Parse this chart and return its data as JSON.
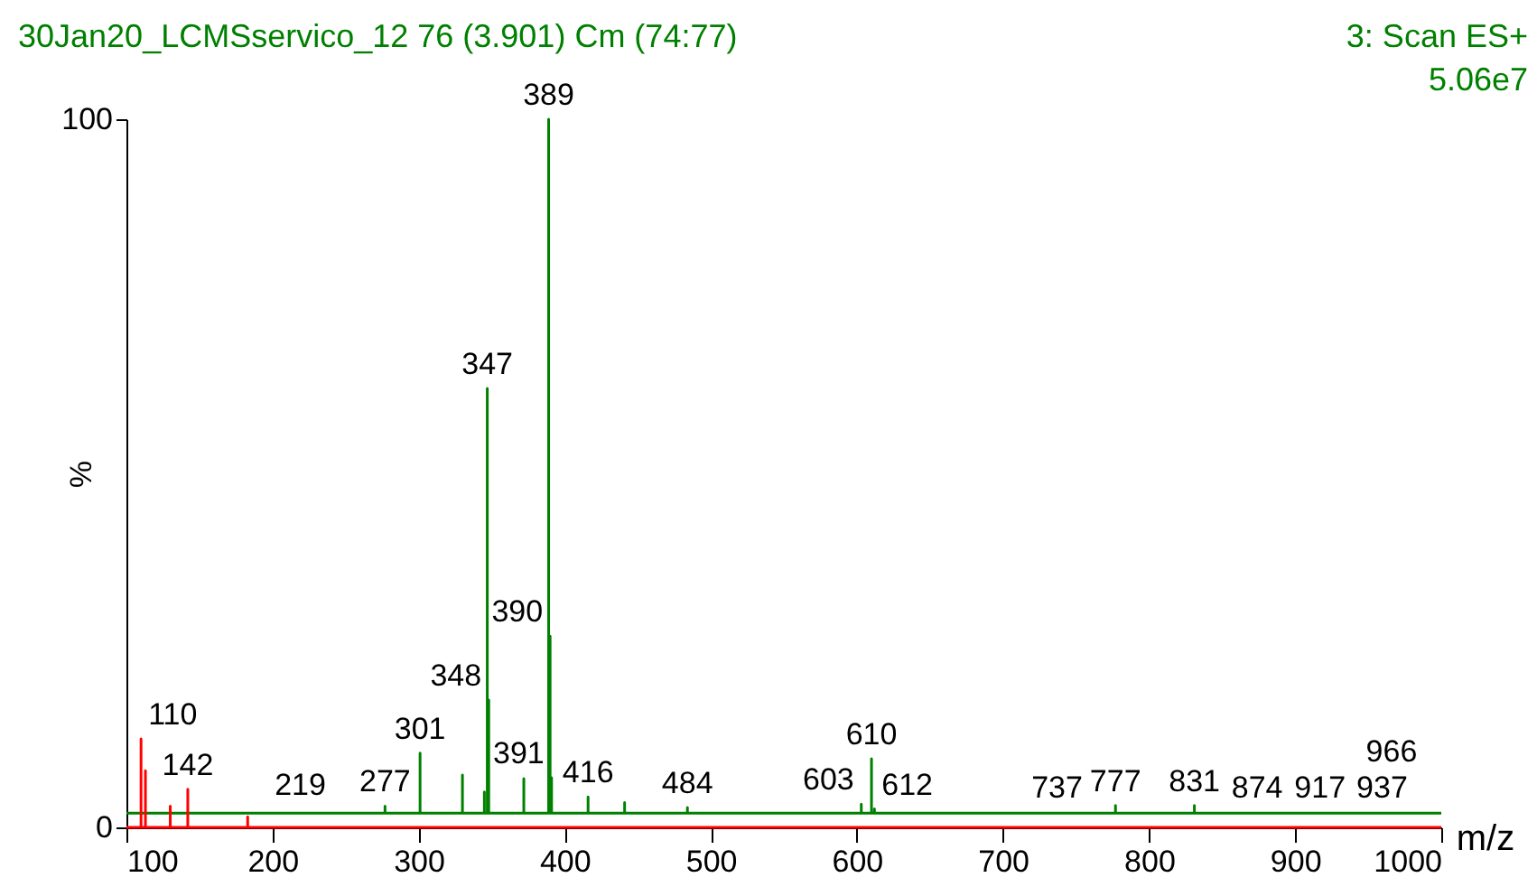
{
  "chart_data": {
    "type": "line",
    "title": "30Jan20_LCMSservico_12 76 (3.901) Cm (74:77)",
    "xlabel": "m/z",
    "ylabel": "%",
    "annotations": [
      "3: Scan ES+",
      "5.06e7",
      {
        "text": "389",
        "x": 389,
        "y": 100
      },
      {
        "text": "347",
        "x": 347,
        "y": 62
      },
      {
        "text": "390",
        "x": 390,
        "y": 27
      },
      {
        "text": "348",
        "x": 348,
        "y": 18
      },
      {
        "text": "301",
        "x": 301,
        "y": 10.5
      },
      {
        "text": "110",
        "x": 110,
        "y": 12.5
      },
      {
        "text": "610",
        "x": 610,
        "y": 9.7
      },
      {
        "text": "391",
        "x": 391,
        "y": 7
      },
      {
        "text": "142",
        "x": 142,
        "y": 5.4
      },
      {
        "text": "416",
        "x": 416,
        "y": 4.3
      },
      {
        "text": "603",
        "x": 603,
        "y": 3.3
      },
      {
        "text": "777",
        "x": 777,
        "y": 3.1
      },
      {
        "text": "831",
        "x": 831,
        "y": 3.1
      },
      {
        "text": "277",
        "x": 277,
        "y": 3
      },
      {
        "text": "484",
        "x": 484,
        "y": 2.8
      },
      {
        "text": "612",
        "x": 612,
        "y": 2.6
      },
      {
        "text": "219",
        "x": 219,
        "y": 2.5
      },
      {
        "text": "737",
        "x": 737,
        "y": 2.2
      },
      {
        "text": "874",
        "x": 874,
        "y": 2.2
      },
      {
        "text": "917",
        "x": 917,
        "y": 2.2
      },
      {
        "text": "937",
        "x": 937,
        "y": 2.2
      },
      {
        "text": "966",
        "x": 966,
        "y": 2.2
      }
    ],
    "xlim": [
      100,
      1000
    ],
    "xticks": [
      100,
      200,
      300,
      400,
      500,
      600,
      700,
      800,
      900,
      1000
    ],
    "ylim": [
      0,
      100
    ],
    "yticks": [
      0,
      100
    ],
    "grid": false,
    "marker": "none",
    "line_style": "solid",
    "series": [
      {
        "color": "#008000",
        "x": [
          100,
          277,
          277,
          277,
          301,
          301,
          301,
          330,
          330,
          330,
          345,
          345,
          345,
          347,
          347,
          347,
          348,
          348,
          348,
          372,
          372,
          372,
          389,
          389,
          389,
          390,
          390,
          390,
          391,
          391,
          391,
          416,
          416,
          416,
          441,
          441,
          441,
          484,
          484,
          484,
          603,
          603,
          603,
          610,
          610,
          610,
          612,
          612,
          612,
          777,
          777,
          777,
          831,
          831,
          831,
          1000
        ],
        "values": [
          2,
          2,
          3,
          2,
          2,
          10.5,
          2,
          2,
          7.4,
          2,
          2,
          5,
          2,
          2,
          62,
          2,
          2,
          18,
          2,
          2,
          6.9,
          2,
          2,
          100,
          2,
          2,
          27,
          2,
          2,
          7,
          2,
          2,
          4.3,
          2,
          2,
          3.5,
          2,
          2,
          2.8,
          2,
          2,
          3.3,
          2,
          2,
          9.7,
          2,
          2,
          2.6,
          2,
          2,
          3.1,
          2,
          2,
          3.1,
          2,
          2
        ]
      },
      {
        "color": "#ff0000",
        "x": [
          100,
          110,
          110,
          110,
          113,
          113,
          113,
          130,
          130,
          130,
          142,
          142,
          142,
          183,
          183,
          183,
          1000
        ],
        "values": [
          0,
          0,
          12.5,
          0,
          0,
          8,
          0,
          0,
          3,
          0,
          0,
          5.4,
          0,
          0,
          1.5,
          0,
          0
        ]
      }
    ]
  }
}
